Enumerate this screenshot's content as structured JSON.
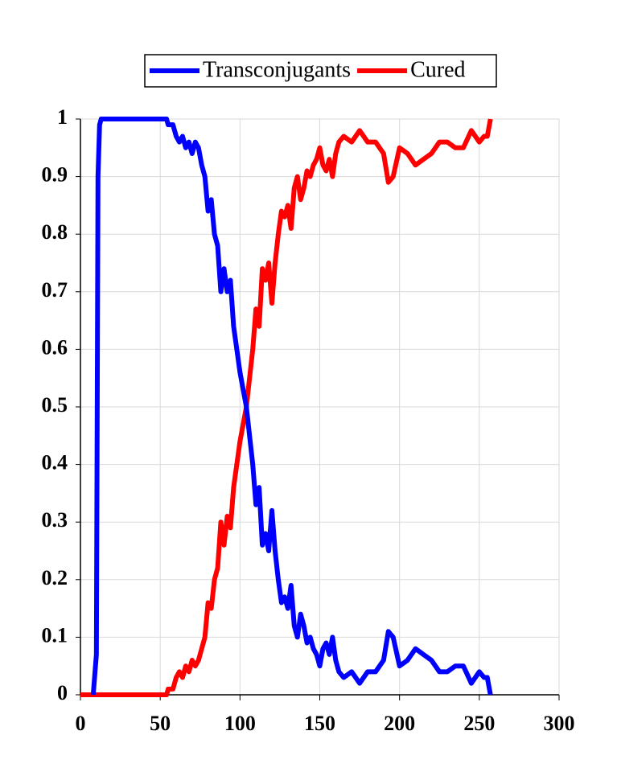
{
  "chart_data": {
    "type": "line",
    "x": [
      0,
      8,
      10,
      11,
      12,
      13,
      20,
      30,
      40,
      50,
      54,
      55,
      58,
      60,
      62,
      64,
      66,
      68,
      70,
      72,
      74,
      76,
      78,
      80,
      82,
      84,
      86,
      88,
      90,
      92,
      94,
      96,
      98,
      100,
      102,
      104,
      106,
      108,
      110,
      112,
      114,
      116,
      118,
      120,
      122,
      124,
      126,
      128,
      130,
      132,
      134,
      136,
      138,
      140,
      142,
      144,
      146,
      148,
      150,
      152,
      154,
      156,
      158,
      160,
      162,
      165,
      170,
      175,
      180,
      185,
      190,
      193,
      196,
      200,
      205,
      210,
      215,
      220,
      225,
      230,
      235,
      240,
      245,
      250,
      253,
      255,
      257
    ],
    "series": [
      {
        "name": "Transconjugants",
        "color": "#0000ff",
        "values": [
          null,
          0,
          0.07,
          0.9,
          0.99,
          1,
          1,
          1,
          1,
          1,
          1,
          0.99,
          0.99,
          0.97,
          0.96,
          0.97,
          0.95,
          0.96,
          0.94,
          0.96,
          0.95,
          0.92,
          0.9,
          0.84,
          0.86,
          0.8,
          0.78,
          0.7,
          0.74,
          0.7,
          0.72,
          0.64,
          0.6,
          0.56,
          0.53,
          0.5,
          0.45,
          0.4,
          0.33,
          0.36,
          0.26,
          0.28,
          0.25,
          0.32,
          0.25,
          0.2,
          0.16,
          0.17,
          0.15,
          0.19,
          0.12,
          0.1,
          0.14,
          0.12,
          0.09,
          0.1,
          0.08,
          0.07,
          0.05,
          0.08,
          0.09,
          0.07,
          0.1,
          0.06,
          0.04,
          0.03,
          0.04,
          0.02,
          0.04,
          0.04,
          0.06,
          0.11,
          0.1,
          0.05,
          0.06,
          0.08,
          0.07,
          0.06,
          0.04,
          0.04,
          0.05,
          0.05,
          0.02,
          0.04,
          0.03,
          0.03,
          0
        ]
      },
      {
        "name": "Cured",
        "color": "#ff0000",
        "values": [
          0,
          0,
          0,
          0,
          0,
          0,
          0,
          0,
          0,
          0,
          0,
          0.01,
          0.01,
          0.03,
          0.04,
          0.03,
          0.05,
          0.04,
          0.06,
          0.05,
          0.06,
          0.08,
          0.1,
          0.16,
          0.15,
          0.2,
          0.22,
          0.3,
          0.26,
          0.31,
          0.29,
          0.36,
          0.4,
          0.44,
          0.47,
          0.5,
          0.55,
          0.6,
          0.67,
          0.64,
          0.74,
          0.72,
          0.75,
          0.68,
          0.75,
          0.8,
          0.84,
          0.83,
          0.85,
          0.81,
          0.88,
          0.9,
          0.86,
          0.88,
          0.91,
          0.9,
          0.92,
          0.93,
          0.95,
          0.92,
          0.91,
          0.93,
          0.9,
          0.94,
          0.96,
          0.97,
          0.96,
          0.98,
          0.96,
          0.96,
          0.94,
          0.89,
          0.9,
          0.95,
          0.94,
          0.92,
          0.93,
          0.94,
          0.96,
          0.96,
          0.95,
          0.95,
          0.98,
          0.96,
          0.97,
          0.97,
          1
        ]
      }
    ],
    "xlim": [
      0,
      300
    ],
    "xticks": [
      0,
      50,
      100,
      150,
      200,
      250,
      300
    ],
    "ylim": [
      0,
      1
    ],
    "yticks": [
      0,
      0.1,
      0.2,
      0.3,
      0.4,
      0.5,
      0.6,
      0.7,
      0.8,
      0.9,
      1
    ],
    "grid": true,
    "legend": "top"
  }
}
